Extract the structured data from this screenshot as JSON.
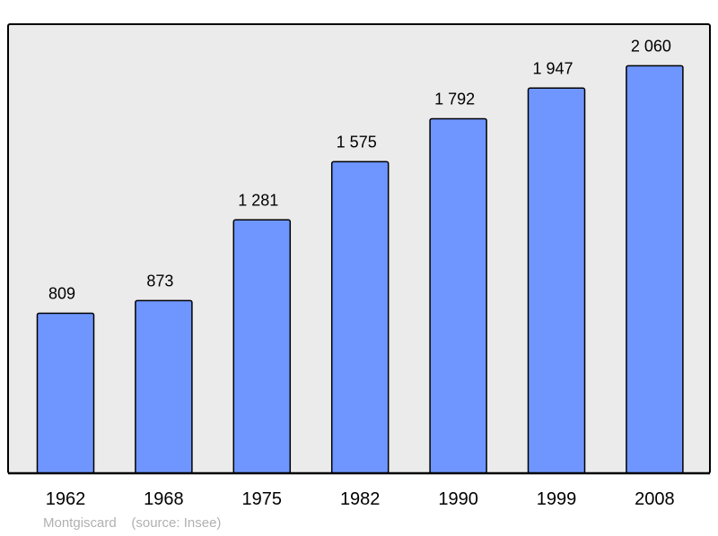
{
  "chart_data": {
    "type": "bar",
    "categories": [
      "1962",
      "1968",
      "1975",
      "1982",
      "1990",
      "1999",
      "2008"
    ],
    "values": [
      809,
      873,
      1281,
      1575,
      1792,
      1947,
      2060
    ],
    "value_labels": [
      "809",
      "873",
      "1 281",
      "1 575",
      "1 792",
      "1 947",
      "2 060"
    ],
    "title": "",
    "xlabel": "",
    "ylabel": "",
    "ylim": [
      0,
      2270
    ],
    "grid": false,
    "legend": "none",
    "colors": {
      "bar": "#6f96ff",
      "plot_background": "#ebebeb",
      "outline": "#000000"
    }
  },
  "footer": {
    "commune": "Montgiscard",
    "source": "(source: Insee)"
  }
}
